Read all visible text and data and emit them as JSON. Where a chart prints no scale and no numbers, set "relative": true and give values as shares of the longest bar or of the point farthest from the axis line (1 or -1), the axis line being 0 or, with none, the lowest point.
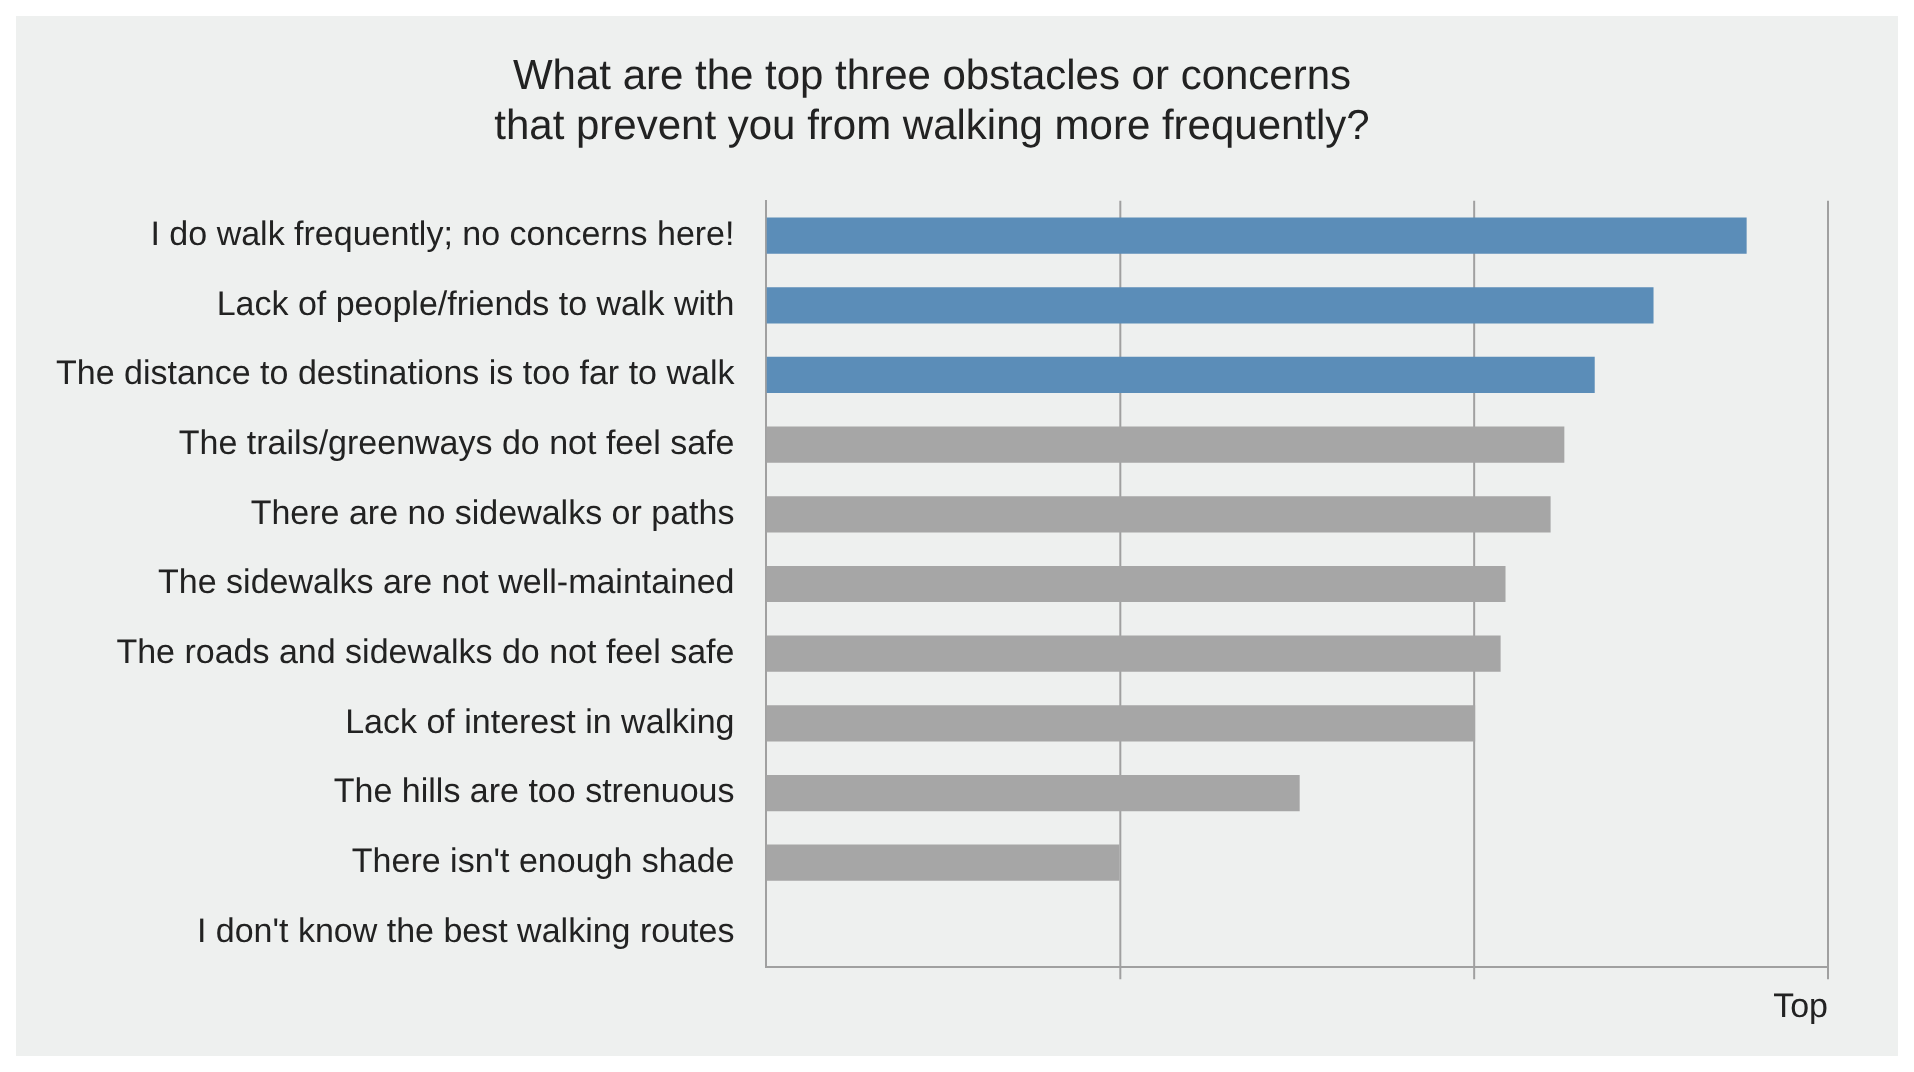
{
  "chart_data": {
    "type": "bar",
    "orientation": "horizontal",
    "relative": true,
    "title": "What are the top three obstacles or concerns\nthat prevent you from walking more frequently?",
    "xlabel": "Top",
    "categories": [
      "I do walk frequently; no concerns here!",
      "Lack of people/friends to walk with",
      "The distance to destinations is too far to walk",
      "The trails/greenways do not feel safe",
      "There are no sidewalks or paths",
      "The sidewalks are not well-maintained",
      "The roads and sidewalks do not feel safe",
      "Lack of interest in walking",
      "The hills are too strenuous",
      "There isn't enough shade",
      "I don't know the best walking routes"
    ],
    "values": [
      1,
      0.905,
      0.845,
      0.814,
      0.8,
      0.754,
      0.749,
      0.723,
      0.544,
      0.36,
      0
    ],
    "colors": [
      "#5b8db8",
      "#5b8db8",
      "#5b8db8",
      "#a6a6a6",
      "#a6a6a6",
      "#a6a6a6",
      "#a6a6a6",
      "#a6a6a6",
      "#a6a6a6",
      "#a6a6a6",
      "#a6a6a6"
    ],
    "ref_lines": [
      {
        "axis": "x",
        "value": 0.361,
        "color": "#a0a0a0"
      },
      {
        "axis": "x",
        "value": 0.722,
        "color": "#a0a0a0"
      },
      {
        "axis": "x",
        "value": 1.083,
        "color": "#a0a0a0"
      }
    ],
    "legend": false
  }
}
